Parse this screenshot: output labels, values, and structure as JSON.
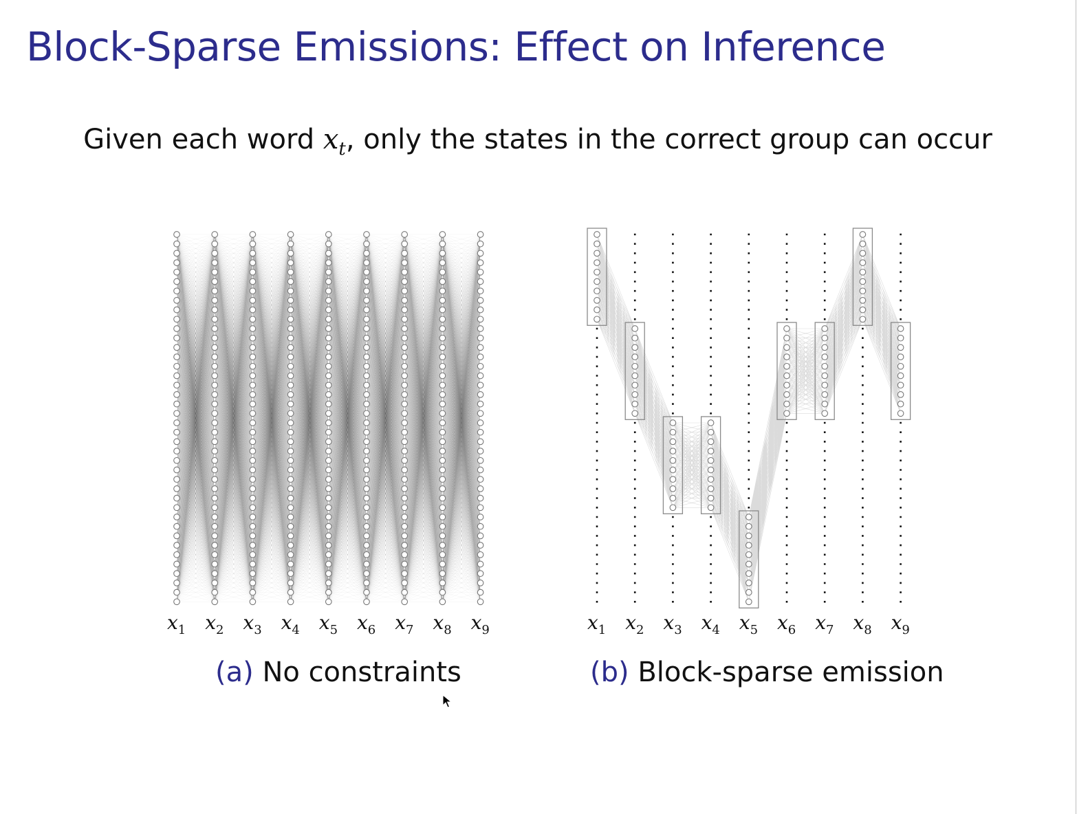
{
  "slide": {
    "title": "Block-Sparse Emissions: Effect on Inference",
    "subtitle_pre": "Given each word ",
    "subtitle_var": "x",
    "subtitle_sub": "t",
    "subtitle_post": ", only the states in the correct group can occur"
  },
  "diagram": {
    "labels": [
      {
        "base": "x",
        "sub": "1"
      },
      {
        "base": "x",
        "sub": "2"
      },
      {
        "base": "x",
        "sub": "3"
      },
      {
        "base": "x",
        "sub": "4"
      },
      {
        "base": "x",
        "sub": "5"
      },
      {
        "base": "x",
        "sub": "6"
      },
      {
        "base": "x",
        "sub": "7"
      },
      {
        "base": "x",
        "sub": "8"
      },
      {
        "base": "x",
        "sub": "9"
      }
    ],
    "states_per_column": 40,
    "states_per_group": 10,
    "block_sparse_groups": [
      1,
      2,
      3,
      3,
      4,
      2,
      2,
      1,
      2
    ],
    "panel_a": {
      "tag": "(a)",
      "text": "No constraints"
    },
    "panel_b": {
      "tag": "(b)",
      "text": "Block-sparse emission"
    }
  },
  "colors": {
    "title": "#2c2c8c",
    "caption_tag": "#2c2c8c",
    "text": "#111111",
    "node": "#777777",
    "edge": "#000000"
  },
  "icons": [
    "mouse-cursor-icon"
  ]
}
